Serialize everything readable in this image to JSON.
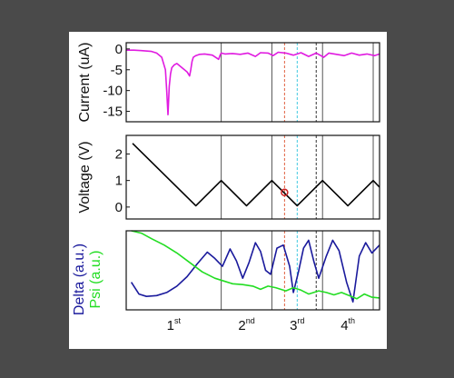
{
  "colors": {
    "background": "#4a4a4a",
    "figure": "#ffffff",
    "current": "#e01be0",
    "voltage": "#000000",
    "delta": "#1a1a9c",
    "psi": "#22dd22",
    "marker": "#cc2222",
    "dash_red": "#e06040",
    "dash_cyan": "#40c8e0",
    "dash_black": "#333333"
  },
  "chart_data": [
    {
      "type": "line",
      "ylabel": "Current (uA)",
      "yticks": [
        0,
        -5,
        -10,
        -15
      ],
      "ytick_labels": [
        "0",
        "-5",
        "-10",
        "-15"
      ],
      "ylim": [
        -17.5,
        1.5
      ],
      "xlim": [
        0,
        10
      ],
      "series": [
        {
          "color": "#e01be0",
          "x": [
            0,
            0.3,
            0.6,
            1.0,
            1.2,
            1.4,
            1.55,
            1.6,
            1.65,
            1.7,
            1.75,
            1.8,
            1.9,
            2.0,
            2.2,
            2.4,
            2.5,
            2.55,
            2.6,
            2.65,
            2.75,
            2.9,
            3.1,
            3.4,
            3.65,
            3.7,
            3.75,
            3.9,
            4.2,
            4.5,
            4.8,
            5.1,
            5.3,
            5.6,
            5.8,
            6.0,
            6.3,
            6.6,
            6.9,
            7.2,
            7.5,
            7.8,
            8.0,
            8.3,
            8.6,
            8.9,
            9.2,
            9.5,
            9.8,
            10
          ],
          "y": [
            -0.3,
            -0.3,
            -0.4,
            -0.6,
            -1.0,
            -2.0,
            -5.0,
            -10.0,
            -15.8,
            -9.0,
            -6.0,
            -4.5,
            -3.8,
            -3.5,
            -4.5,
            -5.5,
            -6.5,
            -5.0,
            -3.0,
            -2.0,
            -1.6,
            -1.3,
            -1.2,
            -1.5,
            -2.5,
            -1.6,
            -1.0,
            -1.2,
            -1.1,
            -1.3,
            -1.0,
            -1.8,
            -0.9,
            -1.0,
            -1.6,
            -0.8,
            -1.0,
            -1.5,
            -0.9,
            -1.8,
            -1.0,
            -2.0,
            -1.0,
            -1.3,
            -1.6,
            -1.0,
            -1.5,
            -1.2,
            -1.6,
            -1.2
          ]
        }
      ]
    },
    {
      "type": "line",
      "ylabel": "Voltage (V)",
      "yticks": [
        0,
        1,
        2
      ],
      "ytick_labels": [
        "0",
        "1",
        "2"
      ],
      "ylim": [
        -0.45,
        2.7
      ],
      "xlim": [
        0,
        10
      ],
      "series": [
        {
          "color": "#000000",
          "x": [
            0.25,
            2.75,
            3.75,
            4.75,
            5.75,
            6.75,
            7.75,
            8.75,
            9.75,
            10
          ],
          "y": [
            2.4,
            0.05,
            1.0,
            0.05,
            1.0,
            0.05,
            1.0,
            0.05,
            1.0,
            0.75
          ]
        }
      ],
      "marker_point": {
        "x": 6.25,
        "y": 0.55
      }
    },
    {
      "type": "line",
      "ylabel_parts": [
        "Delta (a.u.)",
        "Psi (a.u.)"
      ],
      "ylim": [
        0,
        1
      ],
      "xlim": [
        0,
        10
      ],
      "x_category_labels": [
        {
          "base": "1",
          "sup": "st"
        },
        {
          "base": "2",
          "sup": "nd"
        },
        {
          "base": "3",
          "sup": "rd"
        },
        {
          "base": "4",
          "sup": "th"
        }
      ],
      "series": [
        {
          "color": "#1a1a9c",
          "x": [
            0.2,
            0.5,
            0.8,
            1.2,
            1.6,
            2.0,
            2.4,
            2.8,
            3.2,
            3.5,
            3.8,
            4.1,
            4.35,
            4.6,
            4.85,
            5.1,
            5.3,
            5.5,
            5.7,
            5.95,
            6.2,
            6.45,
            6.6,
            6.8,
            7.0,
            7.2,
            7.4,
            7.6,
            7.9,
            8.15,
            8.4,
            8.7,
            8.95,
            9.2,
            9.45,
            9.7,
            10.0
          ],
          "y": [
            0.35,
            0.2,
            0.17,
            0.18,
            0.22,
            0.3,
            0.42,
            0.58,
            0.73,
            0.65,
            0.55,
            0.77,
            0.62,
            0.4,
            0.6,
            0.85,
            0.74,
            0.5,
            0.45,
            0.78,
            0.82,
            0.55,
            0.22,
            0.48,
            0.78,
            0.88,
            0.62,
            0.4,
            0.68,
            0.88,
            0.75,
            0.35,
            0.1,
            0.68,
            0.85,
            0.72,
            0.82
          ]
        },
        {
          "color": "#22dd22",
          "x": [
            0.2,
            0.6,
            1.0,
            1.5,
            2.0,
            2.5,
            3.0,
            3.5,
            3.9,
            4.2,
            4.6,
            5.0,
            5.3,
            5.6,
            5.9,
            6.3,
            6.6,
            6.9,
            7.2,
            7.6,
            7.9,
            8.2,
            8.5,
            8.8,
            9.1,
            9.4,
            9.7,
            10.0
          ],
          "y": [
            1.0,
            0.97,
            0.9,
            0.82,
            0.72,
            0.6,
            0.48,
            0.4,
            0.36,
            0.33,
            0.32,
            0.3,
            0.26,
            0.3,
            0.28,
            0.24,
            0.28,
            0.25,
            0.2,
            0.24,
            0.22,
            0.19,
            0.22,
            0.18,
            0.14,
            0.2,
            0.16,
            0.15
          ]
        }
      ]
    }
  ],
  "cycle_boundaries": [
    3.75,
    5.75,
    7.75,
    9.75
  ],
  "dashed_markers": [
    {
      "x": 6.25,
      "color": "#e06040"
    },
    {
      "x": 6.75,
      "color": "#40c8e0"
    },
    {
      "x": 7.5,
      "color": "#333333"
    }
  ]
}
